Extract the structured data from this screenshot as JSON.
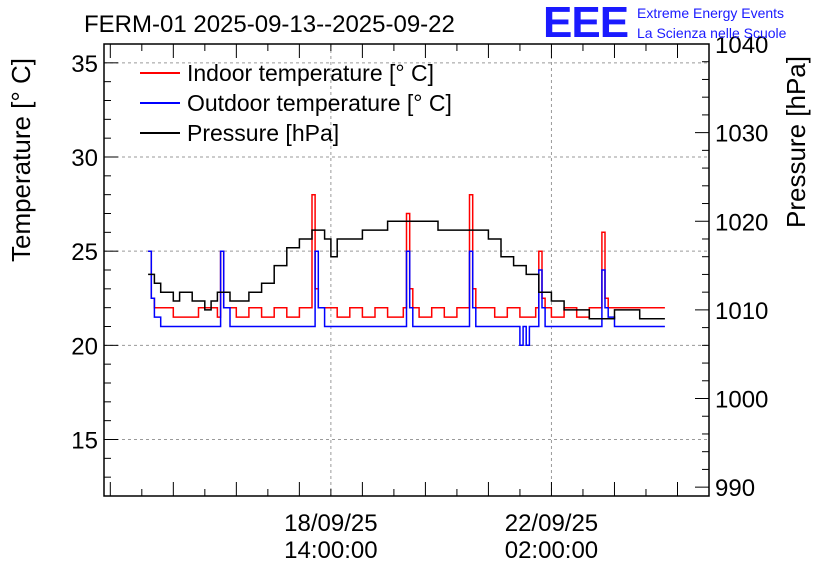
{
  "chart_data": {
    "type": "line",
    "title": "FERM-01 2025-09-13--2025-09-22",
    "ylabel_left": "Temperature [° C]",
    "ylabel_right": "Pressure [hPa]",
    "xlabel": "",
    "x_tick_labels": [
      {
        "date": "18/09/25",
        "time": "14:00:00",
        "x": 5.5
      },
      {
        "date": "22/09/25",
        "time": "02:00:00",
        "x": 9.0
      }
    ],
    "xlim": [
      1.9,
      11.5
    ],
    "ylim_left": [
      12,
      36
    ],
    "ylim_right": [
      989,
      1040
    ],
    "left_ticks": [
      15,
      20,
      25,
      30,
      35
    ],
    "right_ticks": [
      990,
      1000,
      1010,
      1020,
      1030,
      1040
    ],
    "legend": [
      {
        "label": "Indoor temperature [° C]",
        "color": "#ff0000"
      },
      {
        "label": "Outdoor temperature [° C]",
        "color": "#0000ff"
      },
      {
        "label": "Pressure [hPa]",
        "color": "#000000"
      }
    ],
    "series": [
      {
        "name": "Indoor temperature [° C]",
        "axis": "left",
        "color": "#ff0000",
        "x": [
          2.6,
          2.65,
          2.7,
          2.8,
          3.0,
          3.4,
          3.6,
          3.7,
          3.75,
          3.8,
          3.9,
          4.0,
          4.2,
          4.4,
          4.6,
          4.8,
          5.0,
          5.15,
          5.2,
          5.25,
          5.3,
          5.4,
          5.6,
          5.8,
          6.0,
          6.2,
          6.4,
          6.65,
          6.7,
          6.75,
          6.8,
          6.9,
          7.1,
          7.3,
          7.5,
          7.65,
          7.7,
          7.75,
          7.8,
          7.9,
          8.1,
          8.3,
          8.5,
          8.75,
          8.8,
          8.85,
          8.9,
          9.0,
          9.2,
          9.4,
          9.6,
          9.75,
          9.8,
          9.85,
          9.9,
          10.0,
          10.2,
          10.4,
          10.6,
          10.75,
          10.8
        ],
        "y": [
          25,
          22.5,
          22,
          22,
          21.5,
          22,
          22,
          21.5,
          25,
          22,
          22,
          21.5,
          22,
          21.5,
          22,
          21.5,
          22,
          22,
          28,
          23,
          22,
          22,
          21.5,
          22,
          21.5,
          22,
          21.5,
          22,
          27,
          23,
          22,
          21.5,
          22,
          21.5,
          22,
          22,
          28,
          23,
          22,
          22,
          21.5,
          22,
          21.5,
          22,
          25,
          22.5,
          22,
          21.5,
          22,
          21.5,
          22,
          22,
          26,
          22.5,
          22,
          22,
          22,
          22,
          22,
          22,
          22
        ]
      },
      {
        "name": "Outdoor temperature [° C]",
        "axis": "left",
        "color": "#0000ff",
        "x": [
          2.6,
          2.65,
          2.7,
          2.8,
          3.0,
          3.5,
          3.7,
          3.75,
          3.8,
          3.9,
          4.5,
          5.1,
          5.2,
          5.25,
          5.3,
          5.4,
          6.0,
          6.4,
          6.65,
          6.7,
          6.75,
          6.8,
          6.9,
          7.5,
          7.65,
          7.7,
          7.75,
          7.8,
          7.9,
          8.2,
          8.4,
          8.5,
          8.55,
          8.6,
          8.65,
          8.75,
          8.8,
          8.85,
          8.9,
          9.0,
          9.5,
          9.75,
          9.8,
          9.85,
          9.9,
          10.0,
          10.4,
          10.8
        ],
        "y": [
          25,
          22.5,
          21.5,
          21,
          21,
          21,
          21,
          25,
          22,
          21,
          21,
          21,
          21,
          25,
          22,
          21,
          21,
          21,
          21,
          25,
          22,
          21,
          21,
          21,
          21,
          25,
          22,
          21,
          21,
          21,
          21,
          20,
          21,
          20,
          21,
          21,
          24,
          22,
          21,
          21,
          21,
          21,
          24,
          22,
          21.5,
          21,
          21,
          21
        ]
      },
      {
        "name": "Pressure [hPa]",
        "axis": "right",
        "color": "#000000",
        "x": [
          2.6,
          2.7,
          2.8,
          2.9,
          3.0,
          3.1,
          3.2,
          3.3,
          3.4,
          3.5,
          3.6,
          3.7,
          3.8,
          3.9,
          4.0,
          4.2,
          4.4,
          4.6,
          4.8,
          5.0,
          5.2,
          5.4,
          5.5,
          5.6,
          5.8,
          6.0,
          6.2,
          6.4,
          6.6,
          6.8,
          7.0,
          7.2,
          7.4,
          7.6,
          7.8,
          8.0,
          8.2,
          8.4,
          8.6,
          8.8,
          9.0,
          9.2,
          9.4,
          9.6,
          9.8,
          10.0,
          10.2,
          10.4,
          10.6,
          10.8
        ],
        "y": [
          1014,
          1013,
          1012,
          1012,
          1011,
          1012,
          1012,
          1011,
          1011,
          1010,
          1011,
          1012,
          1012,
          1011,
          1011,
          1012,
          1013,
          1015,
          1017,
          1018,
          1019,
          1018,
          1016,
          1018,
          1018,
          1019,
          1019,
          1020,
          1020,
          1020,
          1020,
          1019,
          1019,
          1019,
          1019,
          1018,
          1016,
          1015,
          1014,
          1012,
          1011,
          1010,
          1010,
          1009,
          1009,
          1010,
          1010,
          1009,
          1009,
          1009
        ]
      }
    ]
  },
  "logo": {
    "mark": "EEE",
    "line1": "Extreme Energy Events",
    "line2": "La Scienza nelle Scuole"
  },
  "colors": {
    "logo": "#1a1aff",
    "grid": "#9a9a9a"
  }
}
